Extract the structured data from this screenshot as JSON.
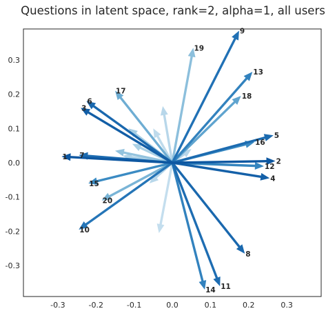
{
  "chart_data": {
    "type": "scatter",
    "title": "Questions in latent space, rank=2, alpha=1, all users",
    "xlabel": "",
    "ylabel": "",
    "xlim": [
      -0.39,
      0.39
    ],
    "ylim": [
      -0.39,
      0.39
    ],
    "xticks": [
      "-0.3",
      "-0.2",
      "-0.1",
      "0.0",
      "0.1",
      "0.2",
      "0.3"
    ],
    "yticks": [
      "0.3",
      "0.2",
      "0.1",
      "0.0",
      "-0.1",
      "-0.2",
      "-0.3"
    ],
    "grid": false,
    "colormap": [
      "#deebf7",
      "#9ecae1",
      "#4292c6",
      "#2171b5",
      "#08519c"
    ],
    "labeled_vectors": [
      {
        "label": "9",
        "x": 0.175,
        "y": 0.385,
        "shade": 0.75
      },
      {
        "label": "19",
        "x": 0.055,
        "y": 0.335,
        "shade": 0.3
      },
      {
        "label": "13",
        "x": 0.21,
        "y": 0.265,
        "shade": 0.62
      },
      {
        "label": "18",
        "x": 0.18,
        "y": 0.195,
        "shade": 0.42
      },
      {
        "label": "17",
        "x": -0.15,
        "y": 0.21,
        "shade": 0.38
      },
      {
        "label": "6",
        "x": -0.225,
        "y": 0.18,
        "shade": 0.82
      },
      {
        "label": "3",
        "x": -0.24,
        "y": 0.16,
        "shade": 0.9
      },
      {
        "label": "5",
        "x": 0.265,
        "y": 0.08,
        "shade": 0.8
      },
      {
        "label": "16",
        "x": 0.215,
        "y": 0.06,
        "shade": 0.55
      },
      {
        "label": "1",
        "x": -0.29,
        "y": 0.018,
        "shade": 0.95
      },
      {
        "label": "7",
        "x": -0.245,
        "y": 0.022,
        "shade": 0.8
      },
      {
        "label": "2",
        "x": 0.27,
        "y": 0.005,
        "shade": 0.95
      },
      {
        "label": "12",
        "x": 0.24,
        "y": -0.01,
        "shade": 0.6
      },
      {
        "label": "4",
        "x": 0.255,
        "y": -0.045,
        "shade": 0.88
      },
      {
        "label": "15",
        "x": -0.22,
        "y": -0.06,
        "shade": 0.55
      },
      {
        "label": "20",
        "x": -0.185,
        "y": -0.11,
        "shade": 0.35
      },
      {
        "label": "10",
        "x": -0.245,
        "y": -0.195,
        "shade": 0.72
      },
      {
        "label": "8",
        "x": 0.19,
        "y": -0.265,
        "shade": 0.82
      },
      {
        "label": "14",
        "x": 0.085,
        "y": -0.37,
        "shade": 0.62
      },
      {
        "label": "11",
        "x": 0.125,
        "y": -0.36,
        "shade": 0.78
      }
    ],
    "unlabeled_vectors": [
      {
        "x": -0.025,
        "y": 0.165,
        "shade": 0.15
      },
      {
        "x": -0.05,
        "y": 0.1,
        "shade": 0.12
      },
      {
        "x": -0.115,
        "y": 0.1,
        "shade": 0.22
      },
      {
        "x": -0.105,
        "y": 0.055,
        "shade": 0.2
      },
      {
        "x": -0.15,
        "y": 0.035,
        "shade": 0.28
      },
      {
        "x": -0.13,
        "y": 0.02,
        "shade": 0.18
      },
      {
        "x": -0.035,
        "y": -0.205,
        "shade": 0.1
      },
      {
        "x": -0.06,
        "y": -0.06,
        "shade": 0.15
      },
      {
        "x": 0.05,
        "y": 0.04,
        "shade": 0.15
      }
    ]
  }
}
